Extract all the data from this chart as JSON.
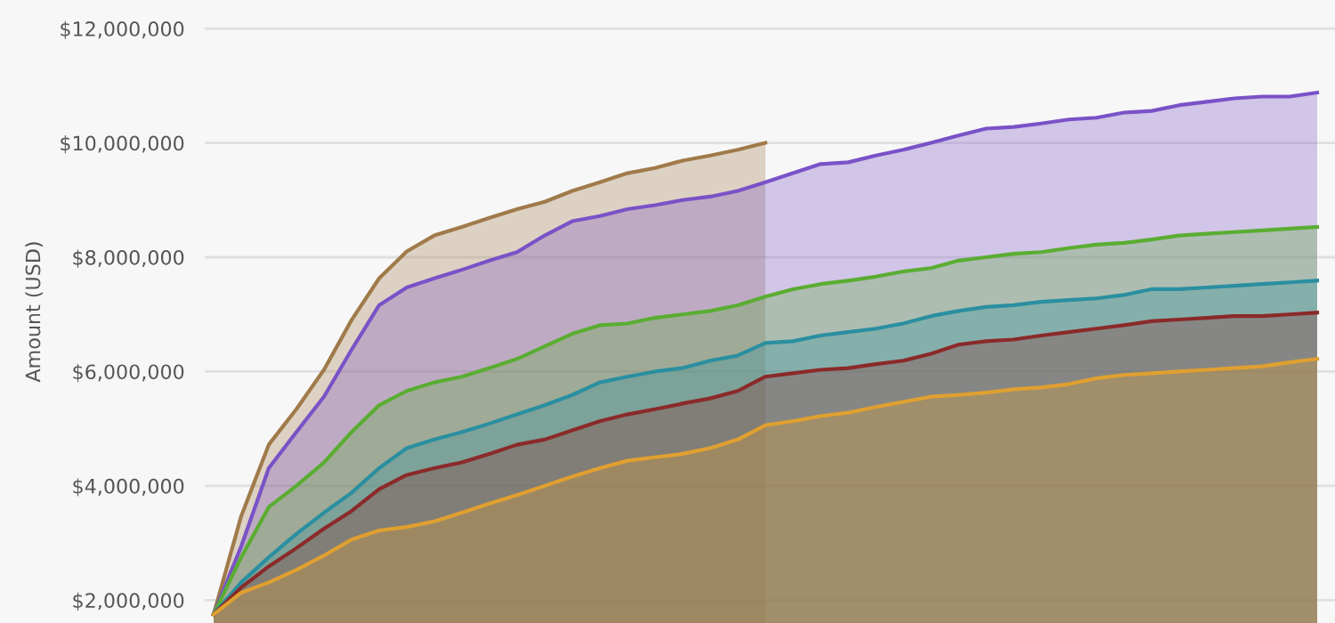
{
  "chart_data": {
    "type": "area",
    "ylabel": "Amount (USD)",
    "categories": [
      null,
      null,
      null,
      null,
      null,
      null,
      null,
      null,
      null,
      null,
      null,
      null,
      null,
      null,
      null,
      null,
      null,
      null,
      null,
      null,
      null,
      null,
      null,
      null,
      null,
      null,
      null,
      null,
      null,
      null,
      null,
      null,
      null,
      null,
      null,
      null,
      null,
      null,
      null,
      null,
      null
    ],
    "ylim": [
      1600000,
      12500000
    ],
    "yticks": [
      {
        "value": 2000000,
        "label": "$2,000,000"
      },
      {
        "value": 4000000,
        "label": "$4,000,000"
      },
      {
        "value": 6000000,
        "label": "$6,000,000"
      },
      {
        "value": 8000000,
        "label": "$8,000,000"
      },
      {
        "value": 10000000,
        "label": "$10,000,000"
      },
      {
        "value": 12000000,
        "label": "$12,000,000"
      }
    ],
    "grid": "y",
    "series": [
      {
        "color": "#a07a4a",
        "values": [
          1750000,
          3470000,
          4720000,
          5340000,
          6030000,
          6900000,
          7630000,
          8100000,
          8380000,
          8530000,
          8690000,
          8840000,
          8970000,
          9160000,
          9310000,
          9470000,
          9560000,
          9690000,
          9780000,
          9880000,
          10000000,
          null,
          null,
          null,
          null,
          null,
          null,
          null,
          null,
          null,
          null,
          null,
          null,
          null,
          null,
          null,
          null,
          null,
          null,
          null,
          null
        ]
      },
      {
        "color": "#7a52c7",
        "values": [
          1750000,
          2940000,
          4310000,
          4940000,
          5560000,
          6380000,
          7160000,
          7470000,
          7630000,
          7780000,
          7940000,
          8090000,
          8380000,
          8630000,
          8720000,
          8840000,
          8910000,
          9000000,
          9060000,
          9160000,
          9310000,
          9470000,
          9630000,
          9660000,
          9780000,
          9880000,
          10000000,
          10130000,
          10250000,
          10280000,
          10340000,
          10410000,
          10440000,
          10530000,
          10560000,
          10660000,
          10720000,
          10780000,
          10810000,
          10810000,
          10880000
        ]
      },
      {
        "color": "#5aad32",
        "values": [
          1750000,
          2750000,
          3630000,
          4000000,
          4410000,
          4940000,
          5410000,
          5660000,
          5810000,
          5910000,
          6060000,
          6220000,
          6440000,
          6660000,
          6810000,
          6840000,
          6940000,
          7000000,
          7060000,
          7160000,
          7310000,
          7440000,
          7530000,
          7590000,
          7660000,
          7750000,
          7810000,
          7940000,
          8000000,
          8060000,
          8090000,
          8160000,
          8220000,
          8250000,
          8310000,
          8380000,
          8410000,
          8440000,
          8470000,
          8500000,
          8530000
        ]
      },
      {
        "color": "#2a8fa0",
        "values": [
          1750000,
          2310000,
          2750000,
          3160000,
          3530000,
          3880000,
          4310000,
          4660000,
          4810000,
          4940000,
          5090000,
          5250000,
          5410000,
          5590000,
          5810000,
          5910000,
          6000000,
          6060000,
          6190000,
          6280000,
          6500000,
          6530000,
          6630000,
          6690000,
          6750000,
          6840000,
          6970000,
          7060000,
          7130000,
          7160000,
          7220000,
          7250000,
          7280000,
          7340000,
          7440000,
          7440000,
          7470000,
          7500000,
          7530000,
          7560000,
          7590000
        ]
      },
      {
        "color": "#8b2a2a",
        "values": [
          1750000,
          2220000,
          2590000,
          2910000,
          3250000,
          3560000,
          3940000,
          4190000,
          4310000,
          4410000,
          4560000,
          4720000,
          4810000,
          4970000,
          5130000,
          5250000,
          5340000,
          5440000,
          5530000,
          5660000,
          5910000,
          5970000,
          6030000,
          6060000,
          6130000,
          6190000,
          6310000,
          6470000,
          6530000,
          6560000,
          6630000,
          6690000,
          6750000,
          6810000,
          6880000,
          6910000,
          6940000,
          6970000,
          6970000,
          7000000,
          7030000
        ]
      },
      {
        "color": "#e0a030",
        "values": [
          1750000,
          2130000,
          2310000,
          2530000,
          2780000,
          3060000,
          3220000,
          3280000,
          3380000,
          3530000,
          3690000,
          3840000,
          4000000,
          4160000,
          4310000,
          4440000,
          4500000,
          4560000,
          4660000,
          4810000,
          5060000,
          5130000,
          5220000,
          5280000,
          5380000,
          5470000,
          5560000,
          5590000,
          5630000,
          5690000,
          5720000,
          5780000,
          5880000,
          5940000,
          5970000,
          6000000,
          6030000,
          6060000,
          6090000,
          6160000,
          6220000
        ]
      }
    ]
  }
}
